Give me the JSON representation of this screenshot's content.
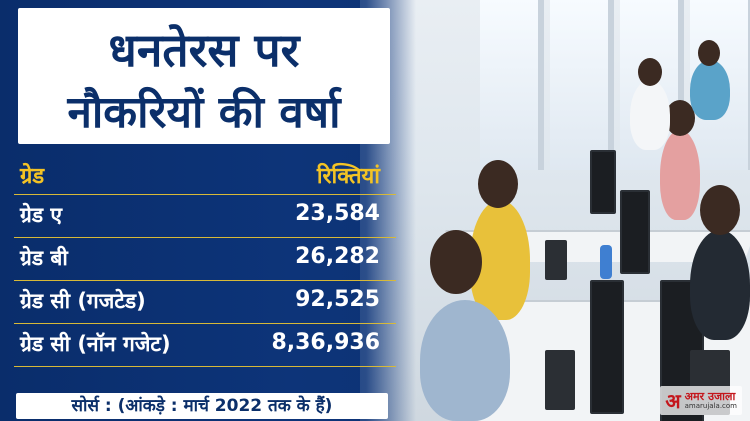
{
  "title": {
    "line1": "धनतेरस पर",
    "line2": "नौकरियों की वर्षा"
  },
  "table": {
    "headers": {
      "grade": "ग्रेड",
      "vacancies": "रिक्तियां"
    },
    "rows": [
      {
        "grade": "ग्रेड ए",
        "value": "23,584"
      },
      {
        "grade": "ग्रेड बी",
        "value": "26,282"
      },
      {
        "grade": "ग्रेड सी (गजटेड)",
        "value": "92,525"
      },
      {
        "grade": "ग्रेड सी (नॉन गजेट)",
        "value": "8,36,936"
      }
    ]
  },
  "source": "सोर्स : (आंकड़े : मार्च 2022 तक के हैं)",
  "logo": {
    "mark": "अ",
    "name": "अमर उजाला",
    "site": "amarujala.com"
  },
  "colors": {
    "navy": "#0b2f6a",
    "accent_yellow": "#f3c325",
    "divider": "#d7b938",
    "logo_red": "#c4161c"
  }
}
